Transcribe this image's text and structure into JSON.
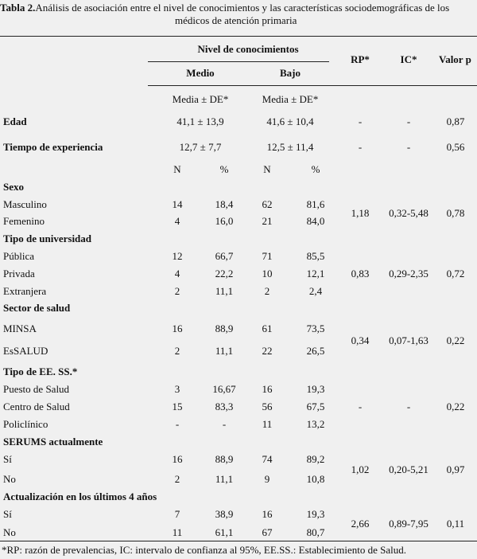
{
  "caption": {
    "label": "Tabla 2.",
    "line1": "Análisis de asociación entre el nivel de conocimientos y las características sociodemográficas de los",
    "line2": "médicos de atención primaria"
  },
  "header": {
    "nivel": "Nivel de conocimientos",
    "medio": "Medio",
    "bajo": "Bajo",
    "rp": "RP*",
    "ic": "IC*",
    "valor_p": "Valor p",
    "media_medio": "Media ± DE*",
    "media_bajo": "Media ± DE*"
  },
  "continuous": [
    {
      "label": "Edad",
      "medio": "41,1 ± 13,9",
      "bajo": "41,6 ± 10,4",
      "rp": "-",
      "ic": "-",
      "p": "0,87"
    },
    {
      "label": "Tiempo de experiencia",
      "medio": "12,7 ± 7,7",
      "bajo": "12,5 ± 11,4",
      "rp": "-",
      "ic": "-",
      "p": "0,56"
    }
  ],
  "np_header": {
    "n1": "N",
    "pct1": "%",
    "n2": "N",
    "pct2": "%"
  },
  "groups": [
    {
      "title": "Sexo",
      "rows": [
        {
          "label": "Masculino",
          "n1": "14",
          "p1": "18,4",
          "n2": "62",
          "p2": "81,6"
        },
        {
          "label": "Femenino",
          "n1": "4",
          "p1": "16,0",
          "n2": "21",
          "p2": "84,0"
        }
      ],
      "rp": "1,18",
      "ic": "0,32-5,48",
      "p": "0,78"
    },
    {
      "title": "Tipo de universidad",
      "rows": [
        {
          "label": "Pública",
          "n1": "12",
          "p1": "66,7",
          "n2": "71",
          "p2": "85,5"
        },
        {
          "label": "Privada",
          "n1": "4",
          "p1": "22,2",
          "n2": "10",
          "p2": "12,1"
        },
        {
          "label": "Extranjera",
          "n1": "2",
          "p1": "11,1",
          "n2": "2",
          "p2": "2,4"
        }
      ],
      "rp": "0,83",
      "ic": "0,29-2,35",
      "p": "0,72"
    },
    {
      "title": "Sector de salud",
      "rows": [
        {
          "label": "MINSA",
          "n1": "16",
          "p1": "88,9",
          "n2": "61",
          "p2": "73,5"
        },
        {
          "label": "EsSALUD",
          "n1": "2",
          "p1": "11,1",
          "n2": "22",
          "p2": "26,5"
        }
      ],
      "rp": "0,34",
      "ic": "0,07-1,63",
      "p": "0,22"
    },
    {
      "title": "Tipo de EE. SS.*",
      "rows": [
        {
          "label": "Puesto de Salud",
          "n1": "3",
          "p1": "16,67",
          "n2": "16",
          "p2": "19,3"
        },
        {
          "label": "Centro de Salud",
          "n1": "15",
          "p1": "83,3",
          "n2": "56",
          "p2": "67,5"
        },
        {
          "label": "Policlínico",
          "n1": "-",
          "p1": "-",
          "n2": "11",
          "p2": "13,2"
        }
      ],
      "rp": "-",
      "ic": "-",
      "p": "0,22"
    },
    {
      "title": "SERUMS actualmente",
      "rows": [
        {
          "label": "Sí",
          "n1": "16",
          "p1": "88,9",
          "n2": "74",
          "p2": "89,2"
        },
        {
          "label": "No",
          "n1": "2",
          "p1": "11,1",
          "n2": "9",
          "p2": "10,8"
        }
      ],
      "rp": "1,02",
      "ic": "0,20-5,21",
      "p": "0,97"
    },
    {
      "title": "Actualización en los últimos 4 años",
      "rows": [
        {
          "label": "Sí",
          "n1": "7",
          "p1": "38,9",
          "n2": "16",
          "p2": "19,3"
        },
        {
          "label": "No",
          "n1": "11",
          "p1": "61,1",
          "n2": "67",
          "p2": "80,7"
        }
      ],
      "rp": "2,66",
      "ic": "0,89-7,95",
      "p": "0,11"
    }
  ],
  "footnote": "*RP: razón de prevalencias, IC: intervalo de confianza al 95%, EE.SS.: Establecimiento de Salud."
}
